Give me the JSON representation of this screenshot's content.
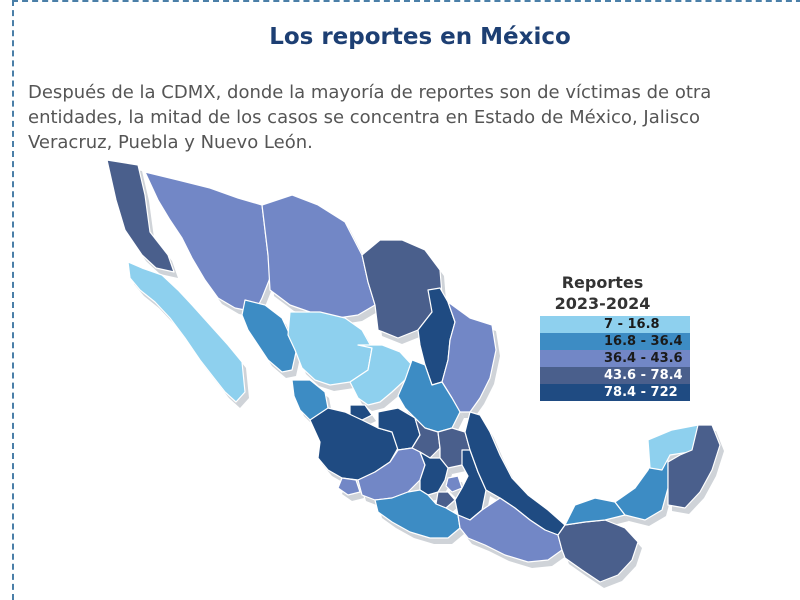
{
  "title": "Los reportes en México",
  "intro_lines": [
    "Después de la CDMX, donde la mayoría de reportes son de víctimas de otra",
    "entidades, la mitad de los casos se concentra en Estado de México, Jalisco",
    "Veracruz, Puebla y Nuevo León."
  ],
  "legend": {
    "title_line1": "Reportes",
    "title_line2": "2023-2024",
    "items": [
      {
        "label": "7 - 16.8",
        "color": "#8ed0ee"
      },
      {
        "label": "16.8 - 36.4",
        "color": "#3d8cc4"
      },
      {
        "label": "36.4 - 43.6",
        "color": "#7287c6"
      },
      {
        "label": "43.6 - 78.4",
        "color": "#4a5f8c"
      },
      {
        "label": "78.4 - 722",
        "color": "#1f4b82"
      }
    ]
  },
  "colors": {
    "title": "#1d3f73",
    "border": "#4a7fa8",
    "state_outline": "#ffffff",
    "shadow": "#cfd3d8"
  },
  "regions": [
    {
      "name": "baja-california",
      "class_index": 3
    },
    {
      "name": "baja-california-sur",
      "class_index": 0
    },
    {
      "name": "sonora",
      "class_index": 2
    },
    {
      "name": "chihuahua",
      "class_index": 2
    },
    {
      "name": "coahuila",
      "class_index": 3
    },
    {
      "name": "nuevo-leon",
      "class_index": 4
    },
    {
      "name": "tamaulipas",
      "class_index": 2
    },
    {
      "name": "sinaloa",
      "class_index": 1
    },
    {
      "name": "durango",
      "class_index": 0
    },
    {
      "name": "zacatecas",
      "class_index": 0
    },
    {
      "name": "san-luis-potosi",
      "class_index": 1
    },
    {
      "name": "nayarit",
      "class_index": 1
    },
    {
      "name": "aguascalientes",
      "class_index": 4
    },
    {
      "name": "jalisco",
      "class_index": 4
    },
    {
      "name": "guanajuato",
      "class_index": 4
    },
    {
      "name": "queretaro",
      "class_index": 3
    },
    {
      "name": "hidalgo",
      "class_index": 3
    },
    {
      "name": "colima",
      "class_index": 2
    },
    {
      "name": "michoacan",
      "class_index": 2
    },
    {
      "name": "estado-de-mexico",
      "class_index": 4
    },
    {
      "name": "cdmx",
      "class_index": 2
    },
    {
      "name": "morelos",
      "class_index": 3
    },
    {
      "name": "tlaxcala",
      "class_index": 3
    },
    {
      "name": "puebla",
      "class_index": 4
    },
    {
      "name": "veracruz",
      "class_index": 4
    },
    {
      "name": "guerrero",
      "class_index": 1
    },
    {
      "name": "oaxaca",
      "class_index": 2
    },
    {
      "name": "chiapas",
      "class_index": 3
    },
    {
      "name": "tabasco",
      "class_index": 1
    },
    {
      "name": "campeche",
      "class_index": 1
    },
    {
      "name": "yucatan",
      "class_index": 0
    },
    {
      "name": "quintana-roo",
      "class_index": 3
    }
  ]
}
